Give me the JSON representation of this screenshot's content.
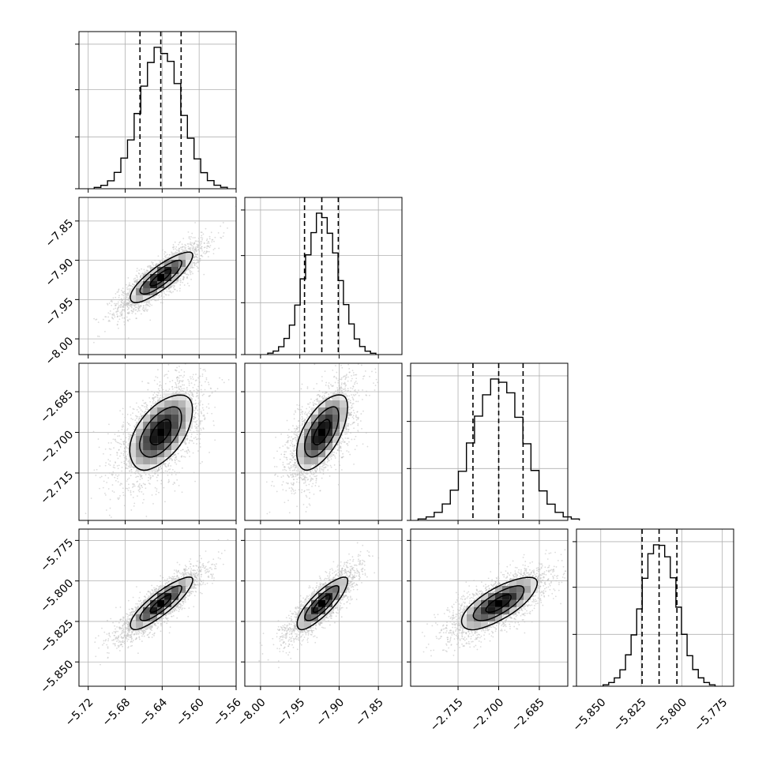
{
  "chart_data": {
    "type": "corner",
    "title": "",
    "parameters": [
      {
        "name": "",
        "median": -5.6415,
        "q16": -5.664,
        "q84": -5.6195,
        "sigma": 0.0225,
        "xlim": [
          -5.73,
          -5.56
        ],
        "ticks": [
          -5.72,
          -5.68,
          -5.64,
          -5.6,
          -5.56
        ],
        "tick_labels": [
          "−5.72",
          "−5.68",
          "−5.64",
          "−5.60",
          "−5.56"
        ]
      },
      {
        "name": "",
        "median": -7.922,
        "q16": -7.944,
        "q84": -7.901,
        "sigma": 0.0215,
        "xlim": [
          -8.02,
          -7.82
        ],
        "ticks": [
          -8.0,
          -7.95,
          -7.9,
          -7.85
        ],
        "tick_labels": [
          "−8.00",
          "−7.95",
          "−7.90",
          "−7.85"
        ]
      },
      {
        "name": "",
        "median": -2.7,
        "q16": -2.7095,
        "q84": -2.691,
        "sigma": 0.0093,
        "xlim": [
          -2.7325,
          -2.6745
        ],
        "ticks": [
          -2.715,
          -2.7,
          -2.685
        ],
        "tick_labels": [
          "−2.715",
          "−2.700",
          "−2.685"
        ]
      },
      {
        "name": "",
        "median": -5.814,
        "q16": -5.8245,
        "q84": -5.803,
        "sigma": 0.0108,
        "xlim": [
          -5.865,
          -5.768
        ],
        "ticks": [
          -5.85,
          -5.825,
          -5.8,
          -5.775
        ],
        "tick_labels": [
          "−5.850",
          "−5.825",
          "−5.800",
          "−5.775"
        ]
      }
    ],
    "correlations": [
      {
        "x": 0,
        "y": 1,
        "rho": 0.84
      },
      {
        "x": 0,
        "y": 2,
        "rho": 0.55
      },
      {
        "x": 1,
        "y": 2,
        "rho": 0.62
      },
      {
        "x": 0,
        "y": 3,
        "rho": 0.86
      },
      {
        "x": 1,
        "y": 3,
        "rho": 0.83
      },
      {
        "x": 2,
        "y": 3,
        "rho": 0.74
      }
    ],
    "histogram": {
      "style": "step",
      "bins": 20,
      "quantile_lines": [
        0.16,
        0.5,
        0.84
      ],
      "line_style": "dashed"
    },
    "density": {
      "contour_levels": [
        0.5,
        1.0,
        1.5
      ],
      "scatter": true
    },
    "grid": true,
    "colors": {
      "line": "#000000",
      "grid": "#b0b0b0",
      "scatter": "#bdbdbd"
    }
  }
}
